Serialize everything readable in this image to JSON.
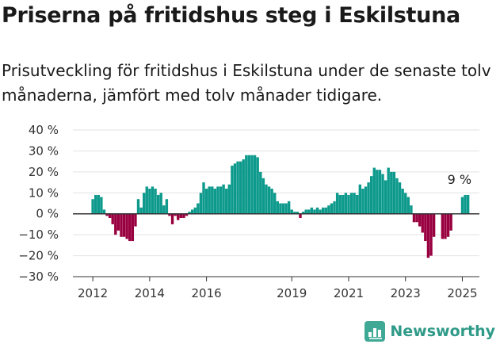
{
  "title": "Priserna på fritidshus steg i Eskilstuna",
  "subtitle": "Prisutveckling för fritidshus i Eskilstuna under de senaste tolv månaderna, jämfört med tolv månader tidigare.",
  "brand": "Newsworthy",
  "colors": {
    "positive": "#0d9a8c",
    "negative": "#99003f",
    "axis": "#333333"
  },
  "chart_data": {
    "type": "bar",
    "ylim": [
      -30,
      40
    ],
    "y_ticks": [
      40,
      30,
      20,
      10,
      0,
      -10,
      -20,
      -30
    ],
    "y_tick_labels": [
      "40 %",
      "30 %",
      "20 %",
      "10 %",
      "0 %",
      "−10 %",
      "−20 %",
      "−30 %"
    ],
    "x_tick_labels": [
      {
        "label": "2012",
        "x": 2012
      },
      {
        "label": "2014",
        "x": 2014
      },
      {
        "label": "2016",
        "x": 2016
      },
      {
        "label": "2019",
        "x": 2019
      },
      {
        "label": "2021",
        "x": 2021
      },
      {
        "label": "2023",
        "x": 2023
      },
      {
        "label": "2025",
        "x": 2025
      }
    ],
    "xlim": [
      2011.3,
      2025.6
    ],
    "annotation": {
      "label": "9 %",
      "x": 2024.9,
      "y": 9
    },
    "values": [
      {
        "x": 2012.0,
        "y": 7
      },
      {
        "x": 2012.1,
        "y": 9
      },
      {
        "x": 2012.2,
        "y": 9
      },
      {
        "x": 2012.3,
        "y": 8
      },
      {
        "x": 2012.4,
        "y": 2
      },
      {
        "x": 2012.5,
        "y": -1
      },
      {
        "x": 2012.6,
        "y": -2
      },
      {
        "x": 2012.7,
        "y": -5
      },
      {
        "x": 2012.8,
        "y": -10
      },
      {
        "x": 2012.9,
        "y": -8
      },
      {
        "x": 2013.0,
        "y": -11
      },
      {
        "x": 2013.1,
        "y": -11
      },
      {
        "x": 2013.2,
        "y": -12
      },
      {
        "x": 2013.3,
        "y": -13
      },
      {
        "x": 2013.4,
        "y": -13
      },
      {
        "x": 2013.5,
        "y": -6
      },
      {
        "x": 2013.6,
        "y": 7
      },
      {
        "x": 2013.7,
        "y": 3
      },
      {
        "x": 2013.8,
        "y": 10
      },
      {
        "x": 2013.9,
        "y": 13
      },
      {
        "x": 2014.0,
        "y": 12
      },
      {
        "x": 2014.1,
        "y": 13
      },
      {
        "x": 2014.2,
        "y": 12
      },
      {
        "x": 2014.3,
        "y": 9
      },
      {
        "x": 2014.4,
        "y": 10
      },
      {
        "x": 2014.5,
        "y": 4
      },
      {
        "x": 2014.6,
        "y": 7
      },
      {
        "x": 2014.7,
        "y": -1
      },
      {
        "x": 2014.8,
        "y": -5
      },
      {
        "x": 2014.9,
        "y": -1
      },
      {
        "x": 2015.0,
        "y": -3
      },
      {
        "x": 2015.1,
        "y": -2
      },
      {
        "x": 2015.2,
        "y": -2
      },
      {
        "x": 2015.3,
        "y": -1
      },
      {
        "x": 2015.4,
        "y": 1
      },
      {
        "x": 2015.5,
        "y": 2
      },
      {
        "x": 2015.6,
        "y": 3
      },
      {
        "x": 2015.7,
        "y": 5
      },
      {
        "x": 2015.8,
        "y": 10
      },
      {
        "x": 2015.9,
        "y": 15
      },
      {
        "x": 2016.0,
        "y": 12
      },
      {
        "x": 2016.1,
        "y": 13
      },
      {
        "x": 2016.2,
        "y": 13
      },
      {
        "x": 2016.3,
        "y": 12
      },
      {
        "x": 2016.4,
        "y": 13
      },
      {
        "x": 2016.5,
        "y": 13
      },
      {
        "x": 2016.6,
        "y": 14
      },
      {
        "x": 2016.7,
        "y": 12
      },
      {
        "x": 2016.8,
        "y": 14
      },
      {
        "x": 2016.9,
        "y": 23
      },
      {
        "x": 2017.0,
        "y": 24
      },
      {
        "x": 2017.1,
        "y": 25
      },
      {
        "x": 2017.2,
        "y": 25
      },
      {
        "x": 2017.3,
        "y": 26
      },
      {
        "x": 2017.4,
        "y": 28
      },
      {
        "x": 2017.5,
        "y": 28
      },
      {
        "x": 2017.6,
        "y": 28
      },
      {
        "x": 2017.7,
        "y": 28
      },
      {
        "x": 2017.8,
        "y": 27
      },
      {
        "x": 2017.9,
        "y": 20
      },
      {
        "x": 2018.0,
        "y": 17
      },
      {
        "x": 2018.1,
        "y": 14
      },
      {
        "x": 2018.2,
        "y": 13
      },
      {
        "x": 2018.3,
        "y": 12
      },
      {
        "x": 2018.4,
        "y": 10
      },
      {
        "x": 2018.5,
        "y": 6
      },
      {
        "x": 2018.6,
        "y": 5
      },
      {
        "x": 2018.7,
        "y": 5
      },
      {
        "x": 2018.8,
        "y": 5
      },
      {
        "x": 2018.9,
        "y": 6
      },
      {
        "x": 2019.0,
        "y": 2
      },
      {
        "x": 2019.1,
        "y": 1
      },
      {
        "x": 2019.2,
        "y": 1
      },
      {
        "x": 2019.3,
        "y": -2
      },
      {
        "x": 2019.4,
        "y": 1
      },
      {
        "x": 2019.5,
        "y": 2
      },
      {
        "x": 2019.6,
        "y": 2
      },
      {
        "x": 2019.7,
        "y": 3
      },
      {
        "x": 2019.8,
        "y": 2
      },
      {
        "x": 2019.9,
        "y": 3
      },
      {
        "x": 2020.0,
        "y": 2
      },
      {
        "x": 2020.1,
        "y": 3
      },
      {
        "x": 2020.2,
        "y": 3
      },
      {
        "x": 2020.3,
        "y": 4
      },
      {
        "x": 2020.4,
        "y": 5
      },
      {
        "x": 2020.5,
        "y": 6
      },
      {
        "x": 2020.6,
        "y": 10
      },
      {
        "x": 2020.7,
        "y": 9
      },
      {
        "x": 2020.8,
        "y": 9
      },
      {
        "x": 2020.9,
        "y": 10
      },
      {
        "x": 2021.0,
        "y": 9
      },
      {
        "x": 2021.1,
        "y": 10
      },
      {
        "x": 2021.2,
        "y": 10
      },
      {
        "x": 2021.3,
        "y": 9
      },
      {
        "x": 2021.4,
        "y": 14
      },
      {
        "x": 2021.5,
        "y": 12
      },
      {
        "x": 2021.6,
        "y": 13
      },
      {
        "x": 2021.7,
        "y": 15
      },
      {
        "x": 2021.8,
        "y": 18
      },
      {
        "x": 2021.9,
        "y": 22
      },
      {
        "x": 2022.0,
        "y": 21
      },
      {
        "x": 2022.1,
        "y": 21
      },
      {
        "x": 2022.2,
        "y": 19
      },
      {
        "x": 2022.3,
        "y": 16
      },
      {
        "x": 2022.4,
        "y": 22
      },
      {
        "x": 2022.5,
        "y": 20
      },
      {
        "x": 2022.6,
        "y": 20
      },
      {
        "x": 2022.7,
        "y": 17
      },
      {
        "x": 2022.8,
        "y": 15
      },
      {
        "x": 2022.9,
        "y": 12
      },
      {
        "x": 2023.0,
        "y": 10
      },
      {
        "x": 2023.1,
        "y": 8
      },
      {
        "x": 2023.2,
        "y": 4
      },
      {
        "x": 2023.3,
        "y": -4
      },
      {
        "x": 2023.4,
        "y": -4
      },
      {
        "x": 2023.5,
        "y": -6
      },
      {
        "x": 2023.6,
        "y": -9
      },
      {
        "x": 2023.7,
        "y": -13
      },
      {
        "x": 2023.8,
        "y": -21
      },
      {
        "x": 2023.9,
        "y": -20
      },
      {
        "x": 2024.0,
        "y": -11
      },
      {
        "x": 2024.3,
        "y": -12
      },
      {
        "x": 2024.4,
        "y": -12
      },
      {
        "x": 2024.5,
        "y": -11
      },
      {
        "x": 2024.6,
        "y": -8
      },
      {
        "x": 2025.0,
        "y": 8
      },
      {
        "x": 2025.1,
        "y": 9
      },
      {
        "x": 2025.2,
        "y": 9
      }
    ]
  }
}
